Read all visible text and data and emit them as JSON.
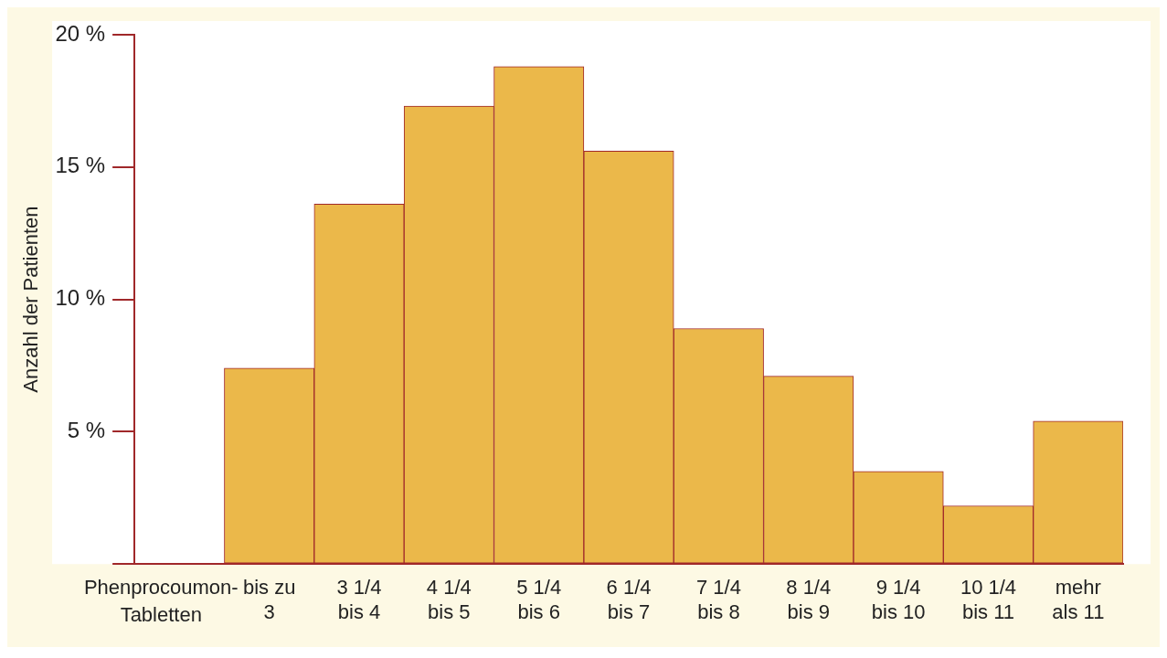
{
  "chart_data": {
    "type": "bar",
    "ylabel": "Anzahl der Patienten",
    "xlabel": "Phenprocoumon-Tabletten",
    "categories": [
      null,
      "bis zu 3",
      "3 1/4 bis 4",
      "4 1/4 bis 5",
      "5 1/4 bis 6",
      "6 1/4 bis 7",
      "7 1/4 bis 8",
      "8 1/4 bis 9",
      "9 1/4 bis 10",
      "10 1/4 bis 11",
      "mehr als 11"
    ],
    "values": [
      null,
      7.4,
      13.6,
      17.3,
      18.8,
      15.6,
      8.9,
      7.1,
      3.5,
      2.2,
      5.4
    ],
    "color": "#ebb84a",
    "ylim": [
      0,
      20
    ],
    "yticks": [
      {
        "value": 0,
        "label": null
      },
      {
        "value": 5,
        "label": "5 %"
      },
      {
        "value": 10,
        "label": "10 %"
      },
      {
        "value": 15,
        "label": "15 %"
      },
      {
        "value": 20,
        "label": "20 %"
      }
    ],
    "grid": false,
    "legend": false
  }
}
